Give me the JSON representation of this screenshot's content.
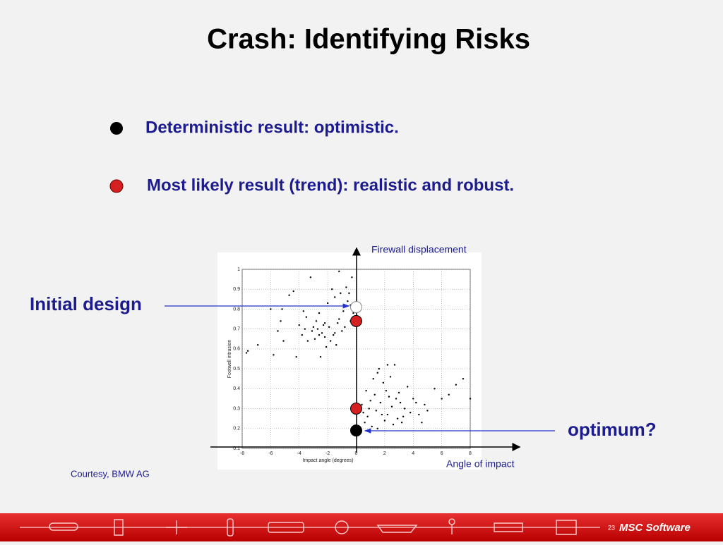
{
  "header": {
    "title": "Crash: Identifying Risks"
  },
  "bullets": [
    "Deterministic result: optimistic.",
    "Most likely result (trend): realistic and robust."
  ],
  "callouts": {
    "initial": "Initial design",
    "optimum": "optimum?"
  },
  "credit": "Courtesy, BMW AG",
  "footer": {
    "page": "23",
    "logo": "MSC Software"
  },
  "chart_data": {
    "type": "scatter",
    "xlabel": "Impact angle (degrees)",
    "ylabel": "Footwell intrusion",
    "annotations": {
      "y_axis": "Firewall displacement",
      "x_axis": "Angle of impact"
    },
    "xlim": [
      -8,
      8
    ],
    "ylim": [
      0.1,
      1
    ],
    "xticks": [
      -8,
      -6,
      -4,
      -2,
      0,
      2,
      4,
      6,
      8
    ],
    "yticks": [
      0.1,
      0.2,
      0.3,
      0.4,
      0.5,
      0.6,
      0.7,
      0.8,
      0.9,
      1
    ],
    "grid": true,
    "color": "#000000",
    "x": [
      -7.6,
      -7.7,
      -6.9,
      -6,
      -5.8,
      -5.5,
      -5.3,
      -5.2,
      -5.1,
      -4.7,
      -4.4,
      -4.2,
      -4,
      -3.8,
      -3.7,
      -3.5,
      -3.4,
      -3.2,
      -3.1,
      -3,
      -2.9,
      -2.8,
      -2.7,
      -2.6,
      -2.5,
      -2.4,
      -2.3,
      -2.2,
      -2.1,
      -2,
      -1.9,
      -1.8,
      -1.7,
      -1.6,
      -1.5,
      -1.4,
      -1.3,
      -1.2,
      -1.1,
      -1,
      -0.9,
      -0.8,
      -0.7,
      -0.6,
      -0.5,
      -0.4,
      -0.3,
      -0.2,
      -1.2,
      -2.2,
      -2.6,
      -3.6,
      -1.5,
      -0.4,
      0.4,
      0.5,
      0.6,
      0.7,
      0.8,
      1,
      1.1,
      1.2,
      1.3,
      1.4,
      1.5,
      1.6,
      1.7,
      1.8,
      1.9,
      2,
      2.1,
      2.2,
      2.3,
      2.4,
      2.5,
      2.6,
      2.7,
      2.8,
      2.9,
      3,
      3.1,
      3.2,
      3.4,
      3.6,
      3.8,
      4,
      4.2,
      4.4,
      4.6,
      4.8,
      5,
      5.5,
      6,
      6.5,
      7,
      7.5,
      8,
      1.5,
      3.3,
      0.9,
      2.2
    ],
    "y": [
      0.59,
      0.58,
      0.62,
      0.8,
      0.57,
      0.69,
      0.74,
      0.8,
      0.64,
      0.87,
      0.89,
      0.56,
      0.72,
      0.67,
      0.79,
      0.76,
      0.64,
      0.96,
      0.69,
      0.71,
      0.65,
      0.74,
      0.7,
      0.78,
      0.56,
      0.68,
      0.72,
      0.66,
      0.61,
      0.83,
      0.71,
      0.64,
      0.9,
      0.67,
      0.68,
      0.62,
      0.73,
      0.75,
      0.88,
      0.69,
      0.79,
      0.71,
      0.91,
      0.84,
      0.88,
      0.82,
      0.96,
      0.78,
      0.99,
      0.73,
      0.67,
      0.7,
      0.86,
      0.74,
      0.32,
      0.28,
      0.23,
      0.39,
      0.26,
      0.34,
      0.21,
      0.45,
      0.37,
      0.29,
      0.48,
      0.5,
      0.33,
      0.27,
      0.43,
      0.24,
      0.39,
      0.52,
      0.36,
      0.46,
      0.31,
      0.22,
      0.52,
      0.35,
      0.25,
      0.38,
      0.33,
      0.23,
      0.3,
      0.41,
      0.28,
      0.35,
      0.33,
      0.27,
      0.23,
      0.32,
      0.29,
      0.4,
      0.35,
      0.37,
      0.42,
      0.45,
      0.35,
      0.2,
      0.26,
      0.3,
      0.27
    ],
    "highlights": {
      "x": [
        0,
        0,
        0,
        0
      ],
      "y": [
        0.81,
        0.74,
        0.3,
        0.19
      ],
      "colors": [
        "#ffffff",
        "#d42020",
        "#d42020",
        "#000000"
      ]
    }
  }
}
